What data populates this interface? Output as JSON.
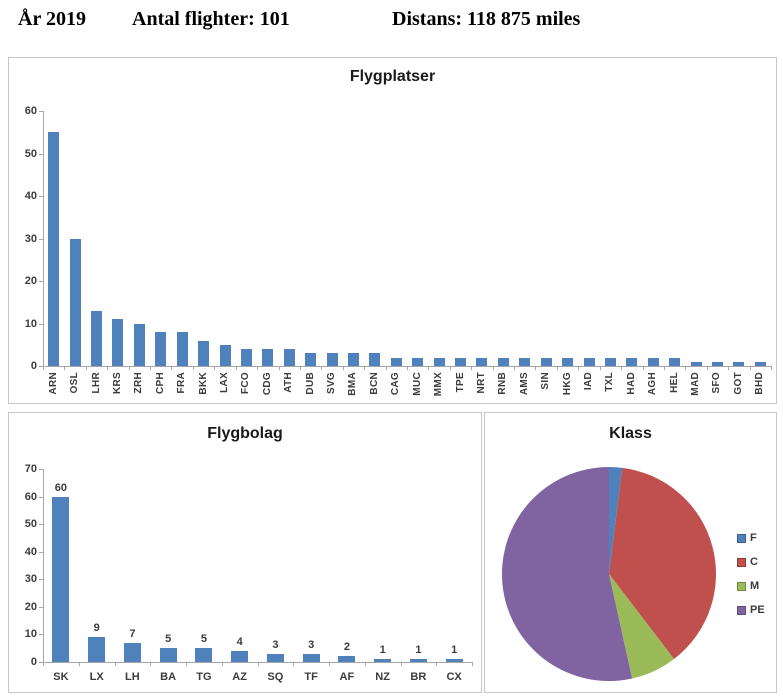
{
  "header": {
    "year": "År 2019",
    "flights": "Antal flighter: 101",
    "distance": "Distans: 118 875 miles"
  },
  "colors": {
    "bar_blue": "#4F81BD",
    "axis_line": "#A6A6A6",
    "label_text": "#3C3C3C",
    "panel_border": "#C6C6C6",
    "pie_F": "#4F81BD",
    "pie_C": "#C0504D",
    "pie_M": "#9BBB59",
    "pie_PE": "#8064A2"
  },
  "chart_data": [
    {
      "id": "airports",
      "type": "bar",
      "title": "Flygplatser",
      "categories": [
        "ARN",
        "OSL",
        "LHR",
        "KRS",
        "ZRH",
        "CPH",
        "FRA",
        "BKK",
        "LAX",
        "FCO",
        "CDG",
        "ATH",
        "DUB",
        "SVG",
        "BMA",
        "BCN",
        "CAG",
        "MUC",
        "MMX",
        "TPE",
        "NRT",
        "RNB",
        "AMS",
        "SIN",
        "HKG",
        "IAD",
        "TXL",
        "HAD",
        "AGH",
        "HEL",
        "MAD",
        "SFO",
        "GOT",
        "BHD"
      ],
      "values": [
        55,
        30,
        13,
        11,
        10,
        8,
        8,
        6,
        5,
        4,
        4,
        4,
        3,
        3,
        3,
        3,
        2,
        2,
        2,
        2,
        2,
        2,
        2,
        2,
        2,
        2,
        2,
        2,
        2,
        2,
        1,
        1,
        1,
        1
      ],
      "xlabel": "",
      "ylabel": "",
      "ylim": [
        0,
        60
      ],
      "ytick_step": 10,
      "grid": false,
      "legend": false,
      "x_label_rotation": 90,
      "show_value_labels": false,
      "bar_color": "#4F81BD"
    },
    {
      "id": "airlines",
      "type": "bar",
      "title": "Flygbolag",
      "categories": [
        "SK",
        "LX",
        "LH",
        "BA",
        "TG",
        "AZ",
        "SQ",
        "TF",
        "AF",
        "NZ",
        "BR",
        "CX"
      ],
      "values": [
        60,
        9,
        7,
        5,
        5,
        4,
        3,
        3,
        2,
        1,
        1,
        1
      ],
      "xlabel": "",
      "ylabel": "",
      "ylim": [
        0,
        70
      ],
      "ytick_step": 10,
      "grid": false,
      "legend": false,
      "x_label_rotation": 0,
      "show_value_labels": true,
      "bar_color": "#4F81BD"
    },
    {
      "id": "class",
      "type": "pie",
      "title": "Klass",
      "legend_position": "right",
      "slices": [
        {
          "label": "F",
          "value": 2,
          "color": "#4F81BD"
        },
        {
          "label": "C",
          "value": 38,
          "color": "#C0504D"
        },
        {
          "label": "M",
          "value": 7,
          "color": "#9BBB59"
        },
        {
          "label": "PE",
          "value": 54,
          "color": "#8064A2"
        }
      ]
    }
  ]
}
